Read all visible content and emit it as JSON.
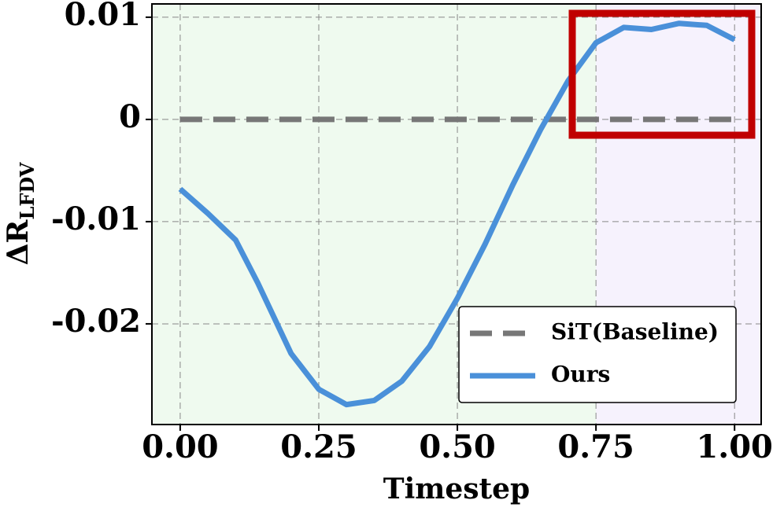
{
  "chart_data": {
    "type": "line",
    "xlabel": "Timestep",
    "ylabel": "ΔR",
    "ylabel_subscript": "LFDV",
    "x": [
      0,
      0.05,
      0.1,
      0.14,
      0.2,
      0.25,
      0.3,
      0.35,
      0.4,
      0.45,
      0.5,
      0.55,
      0.6,
      0.65,
      0.7,
      0.75,
      0.8,
      0.85,
      0.9,
      0.95,
      1.0
    ],
    "series": [
      {
        "name": "SiT(Baseline)",
        "color": "#777777",
        "dashed": true,
        "values": [
          0,
          0,
          0,
          0,
          0,
          0,
          0,
          0,
          0,
          0,
          0,
          0,
          0,
          0,
          0,
          0,
          0,
          0,
          0,
          0,
          0
        ]
      },
      {
        "name": "Ours",
        "color": "#4a90d9",
        "dashed": false,
        "values": [
          -0.0068,
          -0.0092,
          -0.0118,
          -0.016,
          -0.0229,
          -0.0264,
          -0.0279,
          -0.0275,
          -0.0256,
          -0.0222,
          -0.0175,
          -0.0122,
          -0.0064,
          -0.001,
          0.0038,
          0.0075,
          0.009,
          0.0088,
          0.0094,
          0.0092,
          0.0078
        ]
      }
    ],
    "xlim": [
      -0.051,
      1.048
    ],
    "ylim": [
      -0.02985,
      0.0113
    ],
    "xticks": [
      {
        "value": 0,
        "label": "0.00"
      },
      {
        "value": 0.25,
        "label": "0.25"
      },
      {
        "value": 0.5,
        "label": "0.50"
      },
      {
        "value": 0.75,
        "label": "0.75"
      },
      {
        "value": 1,
        "label": "1.00"
      }
    ],
    "yticks": [
      -0.02,
      -0.01,
      0,
      0.01
    ],
    "grid": true,
    "legend": "lower right"
  }
}
